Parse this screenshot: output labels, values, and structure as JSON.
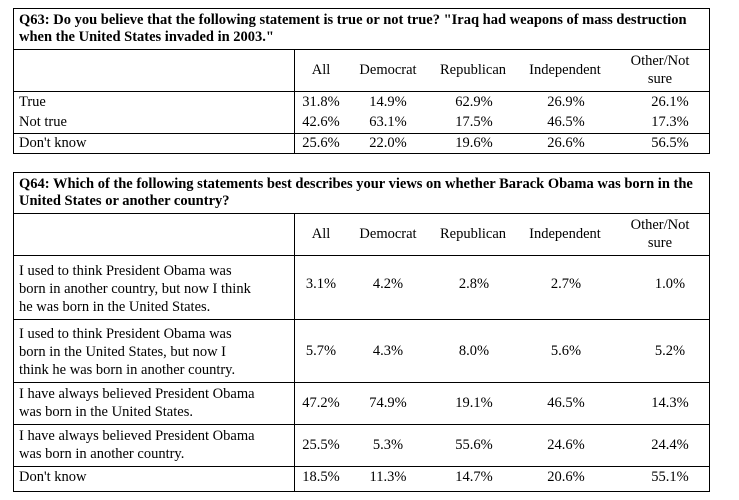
{
  "columns": [
    "All",
    "Democrat",
    "Republican",
    "Independent",
    "Other/Not sure"
  ],
  "q63": {
    "question": "Q63: Do you believe that the following statement is true or not true? \"Iraq had weapons of mass destruction when the United States invaded in 2003.\"",
    "header": {
      "all": "All",
      "dem": "Democrat",
      "rep": "Republican",
      "ind": "Independent",
      "other1": "Other/Not",
      "other2": "sure"
    },
    "rows": [
      {
        "label": "True",
        "all": "31.8%",
        "dem": "14.9%",
        "rep": "62.9%",
        "ind": "26.9%",
        "other": "26.1%"
      },
      {
        "label": "Not true",
        "all": "42.6%",
        "dem": "63.1%",
        "rep": "17.5%",
        "ind": "46.5%",
        "other": "17.3%"
      },
      {
        "label": "Don't know",
        "all": "25.6%",
        "dem": "22.0%",
        "rep": "19.6%",
        "ind": "26.6%",
        "other": "56.5%"
      }
    ]
  },
  "q64": {
    "question": "Q64: Which of the following statements best describes your views on whether Barack Obama was born in the United States or another country?",
    "header": {
      "all": "All",
      "dem": "Democrat",
      "rep": "Republican",
      "ind": "Independent",
      "other1": "Other/Not",
      "other2": "sure"
    },
    "rows": [
      {
        "l1": "I used to think President Obama was",
        "l2": "born in another country, but now I think",
        "l3": "he was born in the United States.",
        "all": "3.1%",
        "dem": "4.2%",
        "rep": "2.8%",
        "ind": "2.7%",
        "other": "1.0%"
      },
      {
        "l1": "I used to think President Obama was",
        "l2": "born in the United States, but now I",
        "l3": "think he was born in another country.",
        "all": "5.7%",
        "dem": "4.3%",
        "rep": "8.0%",
        "ind": "5.6%",
        "other": "5.2%"
      },
      {
        "l1": "I have always believed President Obama",
        "l2": "was born in the United States.",
        "all": "47.2%",
        "dem": "74.9%",
        "rep": "19.1%",
        "ind": "46.5%",
        "other": "14.3%"
      },
      {
        "l1": "I have always believed President Obama",
        "l2": "was born in another country.",
        "all": "25.5%",
        "dem": "5.3%",
        "rep": "55.6%",
        "ind": "24.6%",
        "other": "24.4%"
      },
      {
        "l1": "Don't know",
        "all": "18.5%",
        "dem": "11.3%",
        "rep": "14.7%",
        "ind": "20.6%",
        "other": "55.1%"
      }
    ]
  }
}
